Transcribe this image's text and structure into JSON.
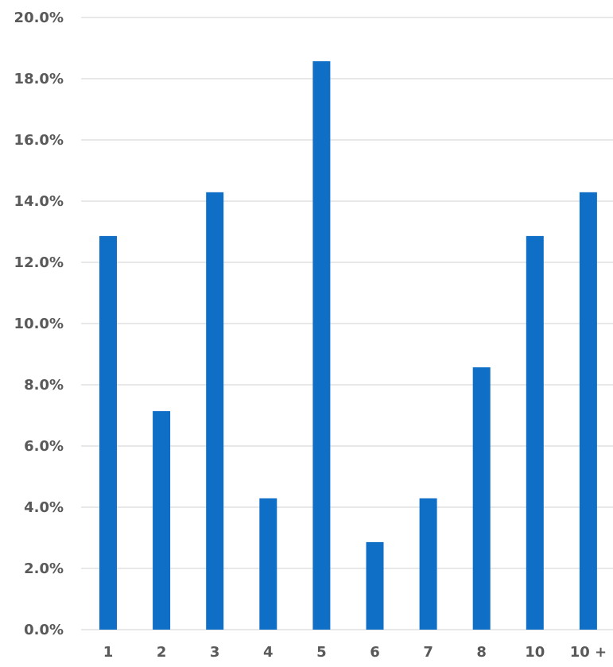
{
  "chart_data": {
    "type": "bar",
    "categories": [
      "1",
      "2",
      "3",
      "4",
      "5",
      "6",
      "7",
      "8",
      "10",
      "10 +"
    ],
    "values": [
      12.86,
      7.14,
      14.29,
      4.29,
      18.57,
      2.86,
      4.29,
      8.57,
      12.86,
      14.29
    ],
    "ylim": [
      0,
      20
    ],
    "yticks": [
      "0.0%",
      "2.0%",
      "4.0%",
      "6.0%",
      "8.0%",
      "10.0%",
      "12.0%",
      "14.0%",
      "16.0%",
      "18.0%",
      "20.0%"
    ],
    "grid": true,
    "legend": "none",
    "bar_color": "#0f6fc6"
  }
}
